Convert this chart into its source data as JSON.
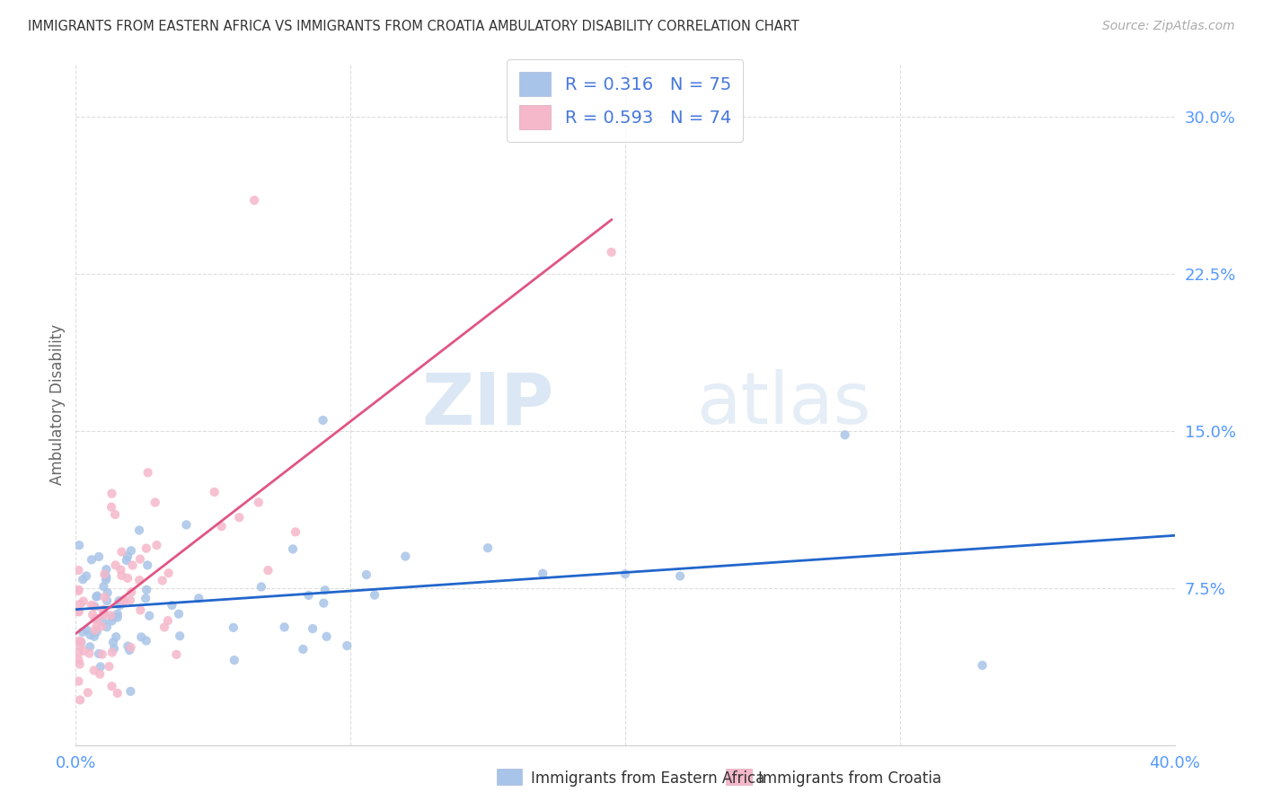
{
  "title": "IMMIGRANTS FROM EASTERN AFRICA VS IMMIGRANTS FROM CROATIA AMBULATORY DISABILITY CORRELATION CHART",
  "source": "Source: ZipAtlas.com",
  "ylabel": "Ambulatory Disability",
  "ytick_labels": [
    "7.5%",
    "15.0%",
    "22.5%",
    "30.0%"
  ],
  "ytick_values": [
    0.075,
    0.15,
    0.225,
    0.3
  ],
  "xlim": [
    0.0,
    0.4
  ],
  "ylim": [
    0.0,
    0.325
  ],
  "series1_name": "Immigrants from Eastern Africa",
  "series1_color": "#a8c4e8",
  "series1_line_color": "#2266cc",
  "series1_R": 0.316,
  "series1_N": 75,
  "series2_name": "Immigrants from Croatia",
  "series2_color": "#f5b8cb",
  "series2_line_color": "#e05585",
  "series2_R": 0.593,
  "series2_N": 74,
  "watermark_zip": "ZIP",
  "watermark_atlas": "atlas",
  "background_color": "#ffffff",
  "grid_color": "#dddddd",
  "title_color": "#333333",
  "axis_color": "#5599ff",
  "legend_text_color": "#4477dd",
  "legend_N_color": "#ff6600"
}
